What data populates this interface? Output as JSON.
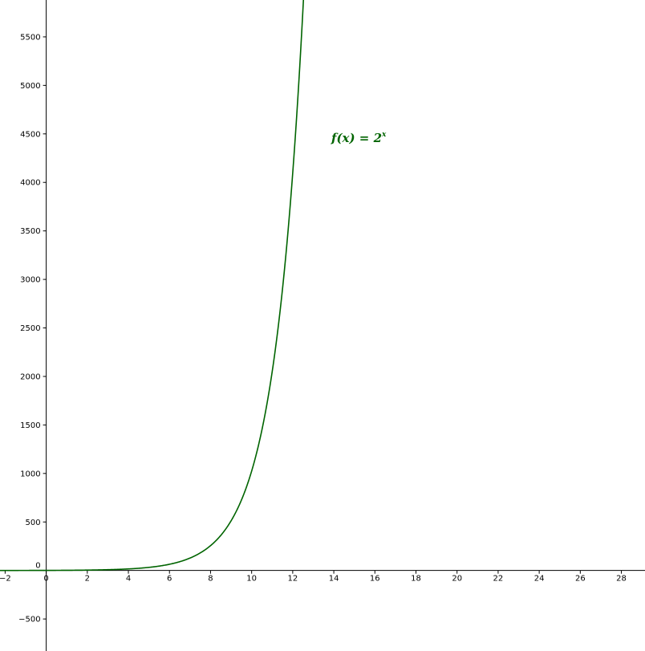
{
  "chart_data": {
    "type": "line",
    "title": "",
    "xlabel": "",
    "ylabel": "",
    "xlim": [
      -2.25,
      29.15
    ],
    "ylim": [
      -830,
      5880
    ],
    "grid": false,
    "x_ticks": [
      -2,
      0,
      2,
      4,
      6,
      8,
      10,
      12,
      14,
      16,
      18,
      20,
      22,
      24,
      26,
      28
    ],
    "x_tick_labels": [
      "−2",
      "0",
      "2",
      "4",
      "6",
      "8",
      "10",
      "12",
      "14",
      "16",
      "18",
      "20",
      "22",
      "24",
      "26",
      "28"
    ],
    "y_ticks": [
      -500,
      0,
      500,
      1000,
      1500,
      2000,
      2500,
      3000,
      3500,
      4000,
      4500,
      5000,
      5500
    ],
    "y_tick_labels": [
      "−500",
      "0",
      "500",
      "1000",
      "1500",
      "2000",
      "2500",
      "3000",
      "3500",
      "4000",
      "4500",
      "5000",
      "5500"
    ],
    "series": [
      {
        "function": "2^x",
        "color": "#006400",
        "x": [
          -2,
          0,
          2,
          4,
          6,
          8,
          9,
          10,
          11,
          12,
          12.5
        ],
        "y": [
          0.25,
          1,
          4,
          16,
          64,
          256,
          512,
          1024,
          2048,
          4096,
          5793
        ]
      }
    ],
    "annotations": [
      {
        "lhs": "f(x) = 2",
        "superscript": "x",
        "color": "#006400"
      }
    ]
  }
}
